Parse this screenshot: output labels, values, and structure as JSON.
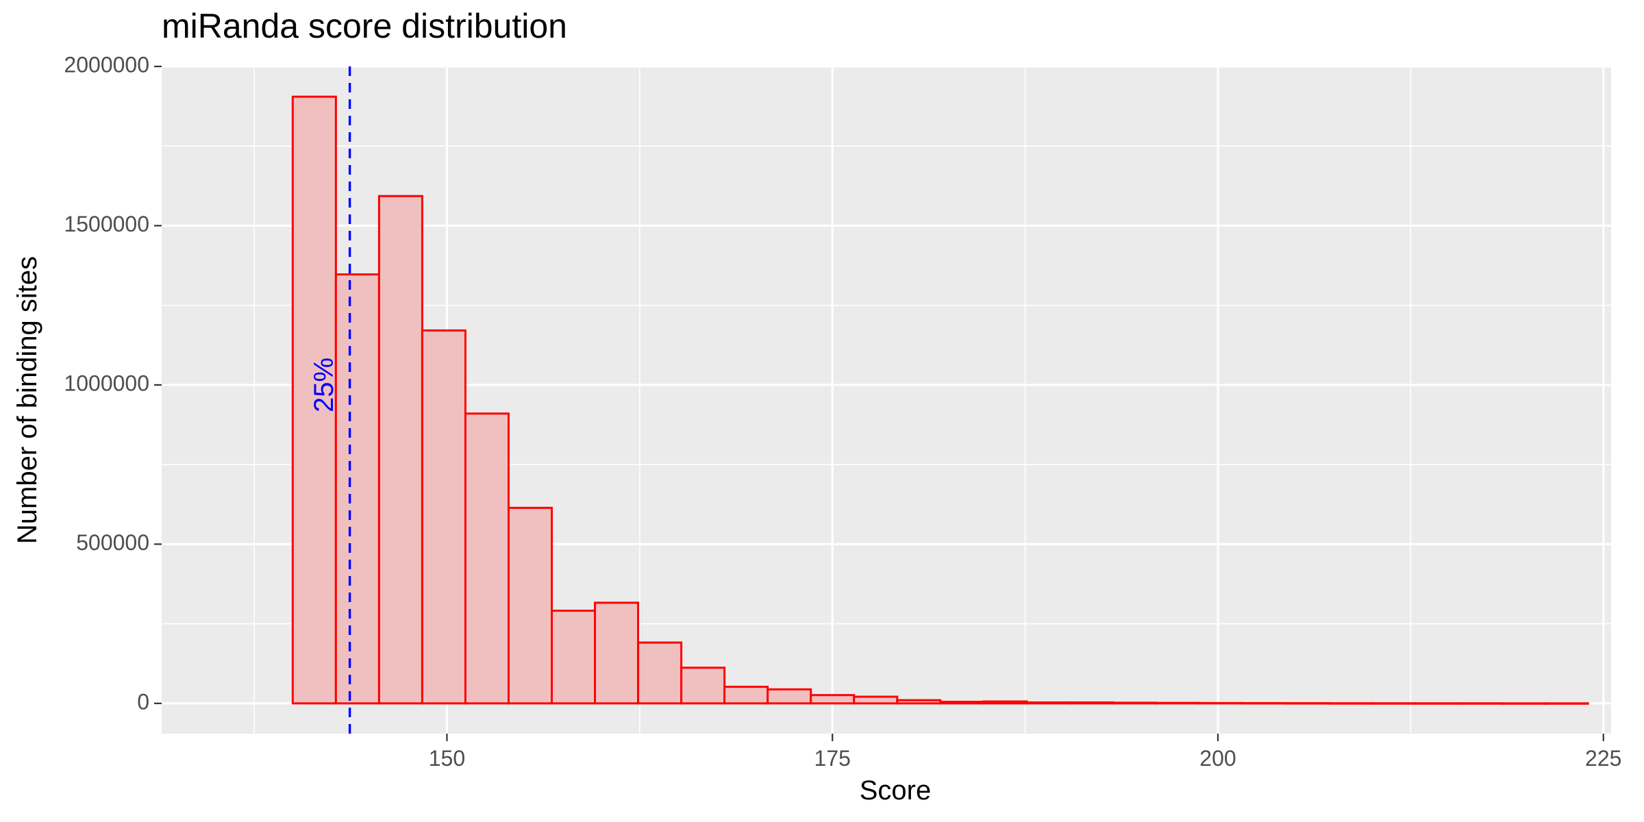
{
  "chart_data": {
    "type": "bar",
    "title": "miRanda score distribution",
    "xlabel": "Score",
    "ylabel": "Number of binding sites",
    "xlim": [
      131.5,
      225.5
    ],
    "ylim": [
      -95000,
      2000000
    ],
    "x_ticks": [
      150,
      175,
      200,
      225
    ],
    "x_tick_labels": [
      "150",
      "175",
      "200",
      "225"
    ],
    "y_ticks": [
      0,
      500000,
      1000000,
      1500000,
      2000000
    ],
    "y_tick_labels": [
      "0",
      "500000",
      "1000000",
      "1500000",
      "2000000"
    ],
    "bins": [
      {
        "x0": 140.0,
        "x1": 142.8,
        "value": 1905000
      },
      {
        "x0": 142.8,
        "x1": 145.6,
        "value": 1347000
      },
      {
        "x0": 145.6,
        "x1": 148.4,
        "value": 1593000
      },
      {
        "x0": 148.4,
        "x1": 151.2,
        "value": 1171000
      },
      {
        "x0": 151.2,
        "x1": 154.0,
        "value": 910000
      },
      {
        "x0": 154.0,
        "x1": 156.8,
        "value": 614000
      },
      {
        "x0": 156.8,
        "x1": 159.6,
        "value": 291000
      },
      {
        "x0": 159.6,
        "x1": 162.4,
        "value": 316000
      },
      {
        "x0": 162.4,
        "x1": 165.2,
        "value": 191000
      },
      {
        "x0": 165.2,
        "x1": 168.0,
        "value": 112000
      },
      {
        "x0": 168.0,
        "x1": 170.8,
        "value": 52000
      },
      {
        "x0": 170.8,
        "x1": 173.6,
        "value": 44000
      },
      {
        "x0": 173.6,
        "x1": 176.4,
        "value": 26000
      },
      {
        "x0": 176.4,
        "x1": 179.2,
        "value": 21000
      },
      {
        "x0": 179.2,
        "x1": 182.0,
        "value": 10000
      },
      {
        "x0": 182.0,
        "x1": 184.8,
        "value": 5000
      },
      {
        "x0": 184.8,
        "x1": 187.6,
        "value": 6000
      },
      {
        "x0": 187.6,
        "x1": 190.4,
        "value": 3000
      },
      {
        "x0": 190.4,
        "x1": 193.2,
        "value": 3000
      },
      {
        "x0": 193.2,
        "x1": 196.0,
        "value": 2000
      },
      {
        "x0": 196.0,
        "x1": 198.8,
        "value": 1500
      },
      {
        "x0": 198.8,
        "x1": 201.6,
        "value": 1000
      },
      {
        "x0": 201.6,
        "x1": 204.4,
        "value": 800
      },
      {
        "x0": 204.4,
        "x1": 207.2,
        "value": 600
      },
      {
        "x0": 207.2,
        "x1": 210.0,
        "value": 400
      },
      {
        "x0": 210.0,
        "x1": 212.8,
        "value": 300
      },
      {
        "x0": 212.8,
        "x1": 215.6,
        "value": 200
      },
      {
        "x0": 215.6,
        "x1": 218.4,
        "value": 200
      },
      {
        "x0": 218.4,
        "x1": 221.2,
        "value": 100
      },
      {
        "x0": 221.2,
        "x1": 224.0,
        "value": 100
      }
    ],
    "reference_line": {
      "x": 143.7,
      "label": "25%",
      "label_y": 1000000,
      "color": "#0000ff",
      "style": "dashed"
    },
    "bar_fill": "#f0c0c0",
    "bar_stroke": "#ff0000",
    "panel_background": "#ebebeb",
    "grid_color": "#ffffff",
    "grid": true,
    "legend": "none"
  }
}
